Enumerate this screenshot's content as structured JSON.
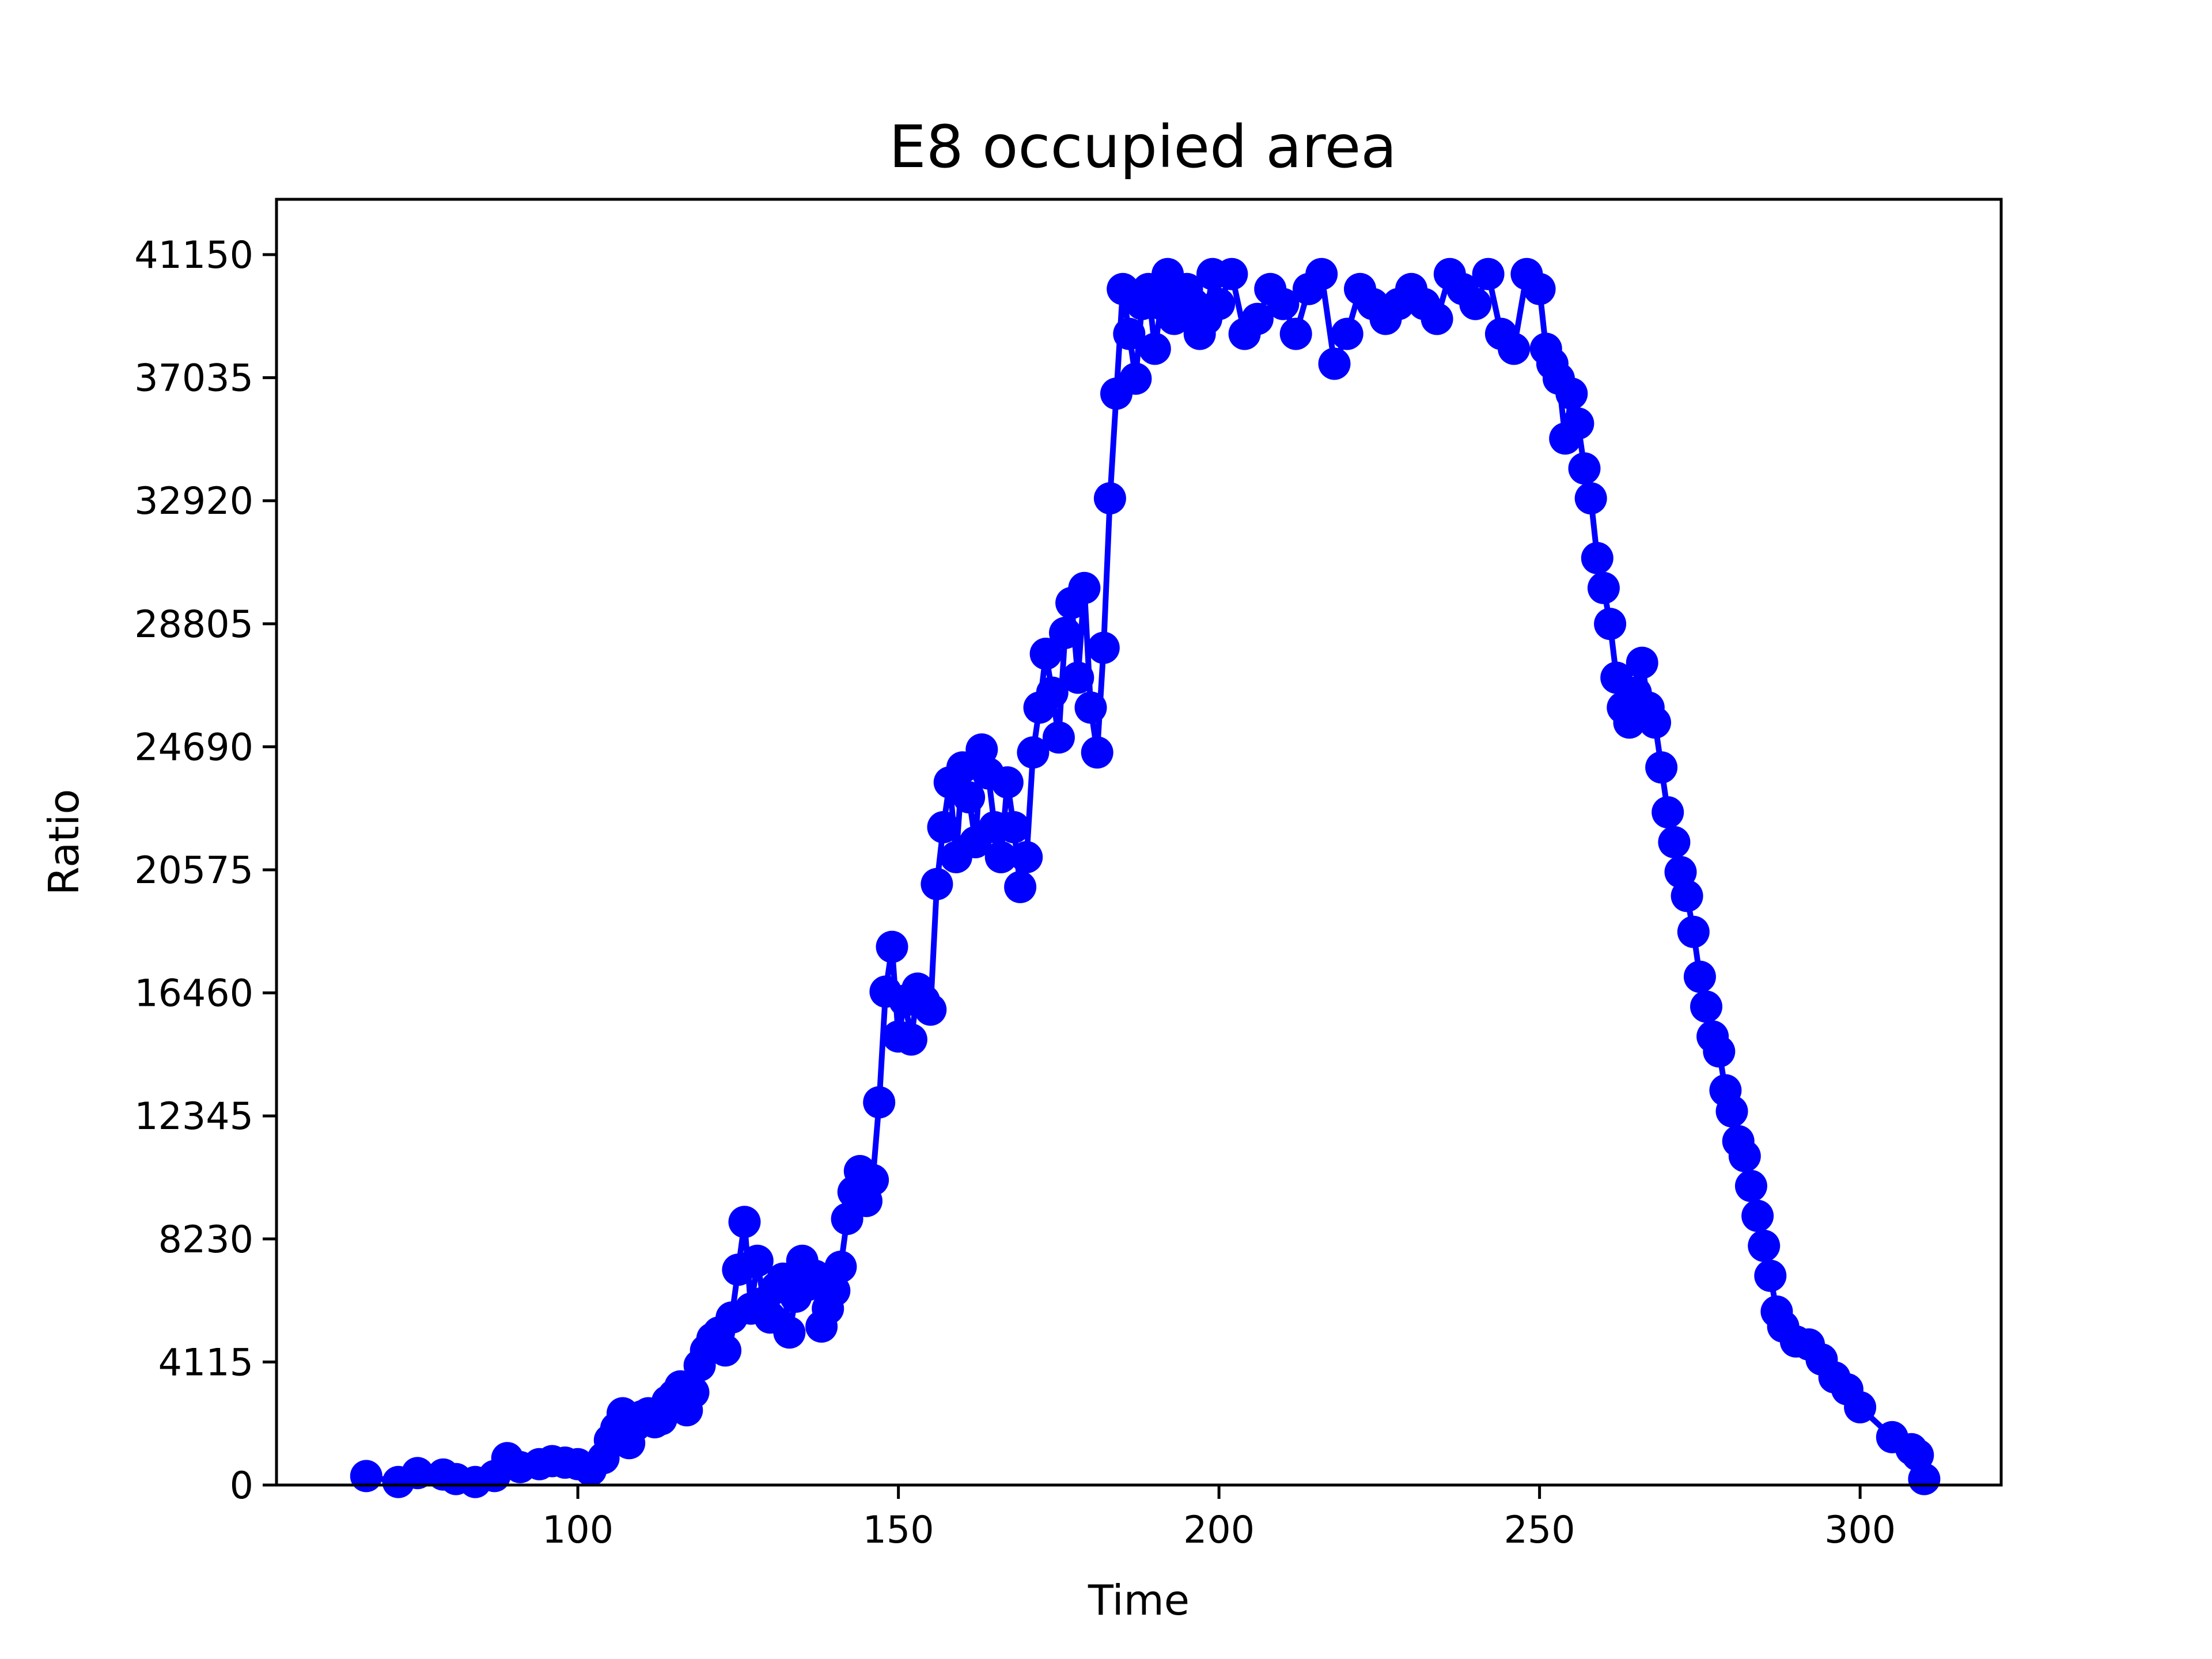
{
  "chart_data": {
    "type": "scatter",
    "title": "E8 occupied area",
    "xlabel": "Time",
    "ylabel": "Ratio",
    "xlim": [
      53,
      322
    ],
    "ylim": [
      0,
      43000
    ],
    "x_ticks": [
      100,
      150,
      200,
      250,
      300
    ],
    "y_ticks": [
      0,
      4115,
      8230,
      12345,
      16460,
      20575,
      24690,
      28805,
      32920,
      37035,
      41150
    ],
    "grid": false,
    "legend": "none",
    "colors": {
      "series": "#0000ff"
    },
    "series": [
      {
        "x": [
          67,
          72,
          75,
          79,
          81,
          84,
          87,
          89,
          91,
          94,
          96,
          98,
          100,
          102,
          104,
          105,
          106,
          107,
          108,
          109,
          110,
          111,
          112,
          113,
          114,
          115,
          116,
          117,
          118,
          119,
          120,
          121,
          122,
          123,
          124,
          125,
          126,
          127,
          128,
          129,
          130,
          131,
          132,
          133,
          134,
          135,
          136,
          137,
          138,
          139,
          140,
          141,
          142,
          143,
          144,
          145,
          146,
          147,
          148,
          149,
          150,
          151,
          152,
          153,
          154,
          155,
          156,
          157,
          158,
          159,
          160,
          161,
          162,
          163,
          164,
          165,
          166,
          167,
          168,
          169,
          170,
          171,
          172,
          173,
          174,
          175,
          176,
          177,
          178,
          179,
          180,
          181,
          182,
          183,
          184,
          185,
          186,
          187,
          188,
          189,
          190,
          191,
          192,
          193,
          194,
          195,
          196,
          197,
          198,
          199,
          200,
          202,
          204,
          206,
          208,
          210,
          212,
          214,
          216,
          218,
          220,
          222,
          224,
          226,
          228,
          230,
          232,
          234,
          236,
          238,
          240,
          242,
          244,
          246,
          248,
          250,
          251,
          252,
          253,
          254,
          255,
          256,
          257,
          258,
          259,
          260,
          261,
          262,
          263,
          264,
          265,
          266,
          267,
          268,
          269,
          270,
          271,
          272,
          273,
          274,
          275,
          276,
          277,
          278,
          279,
          280,
          281,
          282,
          283,
          284,
          285,
          286,
          287,
          288,
          290,
          292,
          294,
          296,
          298,
          300,
          305,
          308,
          309,
          310
        ],
        "y": [
          300,
          100,
          400,
          350,
          200,
          100,
          300,
          900,
          600,
          700,
          800,
          750,
          700,
          500,
          900,
          1500,
          1900,
          2400,
          1400,
          2000,
          2300,
          2400,
          2100,
          2200,
          2800,
          3000,
          3300,
          2500,
          3100,
          4000,
          4500,
          4900,
          5100,
          4500,
          5600,
          7200,
          8800,
          5900,
          7500,
          6100,
          5600,
          6600,
          6900,
          5100,
          6300,
          7500,
          6700,
          7000,
          5300,
          5900,
          6500,
          7300,
          8900,
          9800,
          10500,
          9500,
          10200,
          12800,
          16500,
          18000,
          15000,
          16200,
          14900,
          16600,
          16200,
          15900,
          20100,
          22000,
          23500,
          21000,
          24000,
          23000,
          21500,
          24600,
          23800,
          22000,
          21000,
          23500,
          22000,
          20000,
          21000,
          24500,
          26000,
          27800,
          26500,
          25000,
          28500,
          29500,
          27000,
          30000,
          26000,
          24500,
          28000,
          33000,
          36500,
          40000,
          38500,
          37000,
          39500,
          40000,
          38000,
          39500,
          40500,
          39000,
          40000,
          40000,
          39500,
          38500,
          39000,
          40500,
          39500,
          40500,
          38500,
          39000,
          40000,
          39500,
          38500,
          40000,
          40500,
          37500,
          38500,
          40000,
          39500,
          39000,
          39500,
          40000,
          39500,
          39000,
          40500,
          40000,
          39500,
          40500,
          38500,
          38000,
          40500,
          40000,
          38000,
          37500,
          37000,
          35000,
          36500,
          35500,
          34000,
          33000,
          31000,
          30000,
          28800,
          27000,
          26000,
          25500,
          26500,
          27500,
          26000,
          25500,
          24000,
          22500,
          21500,
          20500,
          19700,
          18500,
          17000,
          16000,
          15000,
          14500,
          13200,
          12500,
          11500,
          11000,
          10000,
          9000,
          8000,
          7000,
          5800,
          5300,
          4800,
          4700,
          4200,
          3600,
          3200,
          2600,
          1600,
          1200,
          1000,
          200
        ]
      }
    ]
  }
}
